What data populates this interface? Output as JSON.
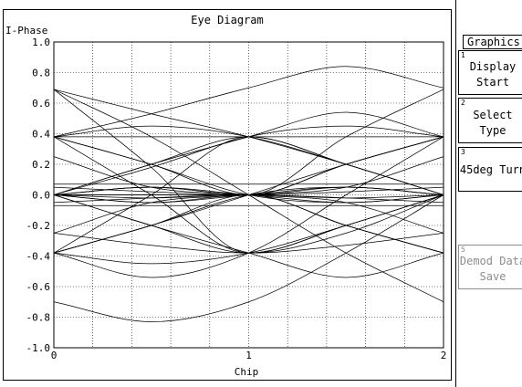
{
  "chart_data": {
    "type": "line",
    "title": "Eye Diagram",
    "ylabel": "I-Phase",
    "xlabel": "Chip",
    "xlim": [
      0,
      2
    ],
    "ylim": [
      -1.0,
      1.0
    ],
    "x_ticks": [
      0,
      1,
      2
    ],
    "x_tick_labels": [
      "0",
      "1",
      "2"
    ],
    "y_ticks": [
      1.0,
      0.8,
      0.6,
      0.4,
      0.2,
      0.0,
      -0.2,
      -0.4,
      -0.6,
      -0.8,
      -1.0
    ],
    "y_tick_labels": [
      "1.0",
      "0.8",
      "0.6",
      "0.4",
      "0.2",
      "0.0",
      "-0.2",
      "-0.4",
      "-0.6",
      "-0.8",
      "-1.0"
    ],
    "x_minor_divisions": 10,
    "grid": true,
    "symbol_levels": [
      0.69,
      0.38,
      0.0,
      -0.38,
      -0.69
    ],
    "traces": [
      {
        "x": [
          0,
          0.5,
          1.0,
          1.5,
          2.0
        ],
        "y": [
          -0.7,
          -0.83,
          -0.7,
          -0.38,
          0.0
        ]
      },
      {
        "x": [
          0,
          0.5,
          1.0,
          1.5,
          2.0
        ],
        "y": [
          0.38,
          0.53,
          0.7,
          0.84,
          0.7
        ]
      },
      {
        "x": [
          0,
          0.5,
          1.0,
          1.5,
          2.0
        ],
        "y": [
          -0.38,
          -0.54,
          -0.38,
          0.0,
          0.38
        ]
      },
      {
        "x": [
          0,
          0.5,
          1.0,
          1.5,
          2.0
        ],
        "y": [
          0.69,
          0.53,
          0.38,
          0.2,
          0.0
        ]
      },
      {
        "x": [
          0,
          0.5,
          1.0,
          1.5,
          2.0
        ],
        "y": [
          0.69,
          0.38,
          0.0,
          -0.38,
          -0.7
        ]
      },
      {
        "x": [
          0,
          0.5,
          1.0,
          1.5,
          2.0
        ],
        "y": [
          0.69,
          0.18,
          -0.38,
          -0.25,
          0.0
        ]
      },
      {
        "x": [
          0,
          0.5,
          1.0,
          1.5,
          2.0
        ],
        "y": [
          0.38,
          0.45,
          0.38,
          0.2,
          0.0
        ]
      },
      {
        "x": [
          0,
          0.5,
          1.0,
          1.5,
          2.0
        ],
        "y": [
          0.38,
          0.2,
          0.0,
          0.2,
          0.38
        ]
      },
      {
        "x": [
          0,
          0.5,
          1.0,
          1.5,
          2.0
        ],
        "y": [
          0.38,
          0.0,
          -0.38,
          -0.2,
          0.0
        ]
      },
      {
        "x": [
          0,
          0.5,
          1.0,
          1.5,
          2.0
        ],
        "y": [
          0.0,
          0.2,
          0.38,
          0.2,
          0.0
        ]
      },
      {
        "x": [
          0,
          0.5,
          1.0,
          1.5,
          2.0
        ],
        "y": [
          0.0,
          -0.2,
          -0.38,
          -0.2,
          0.0
        ]
      },
      {
        "x": [
          0,
          0.5,
          1.0,
          1.5,
          2.0
        ],
        "y": [
          0.0,
          0.05,
          0.0,
          -0.05,
          0.0
        ]
      },
      {
        "x": [
          0,
          0.5,
          1.0,
          1.5,
          2.0
        ],
        "y": [
          0.0,
          -0.05,
          0.0,
          0.05,
          0.0
        ]
      },
      {
        "x": [
          0,
          0.5,
          1.0,
          1.5,
          2.0
        ],
        "y": [
          0.05,
          0.02,
          0.0,
          0.02,
          0.05
        ]
      },
      {
        "x": [
          0,
          0.5,
          1.0,
          1.5,
          2.0
        ],
        "y": [
          -0.05,
          -0.02,
          0.0,
          -0.02,
          -0.05
        ]
      },
      {
        "x": [
          0,
          0.5,
          1.0,
          1.5,
          2.0
        ],
        "y": [
          0.0,
          0.2,
          0.38,
          0.54,
          0.38
        ]
      },
      {
        "x": [
          0,
          0.5,
          1.0,
          1.5,
          2.0
        ],
        "y": [
          0.0,
          -0.2,
          -0.38,
          -0.54,
          -0.38
        ]
      },
      {
        "x": [
          0,
          0.5,
          1.0,
          1.5,
          2.0
        ],
        "y": [
          0.0,
          0.18,
          0.38,
          0.45,
          0.38
        ]
      },
      {
        "x": [
          0,
          0.5,
          1.0,
          1.5,
          2.0
        ],
        "y": [
          -0.38,
          -0.2,
          0.0,
          0.2,
          0.38
        ]
      },
      {
        "x": [
          0,
          0.5,
          1.0,
          1.5,
          2.0
        ],
        "y": [
          -0.38,
          0.0,
          0.38,
          0.2,
          0.0
        ]
      },
      {
        "x": [
          0,
          0.5,
          1.0,
          1.5,
          2.0
        ],
        "y": [
          -0.38,
          -0.45,
          -0.38,
          -0.2,
          0.0
        ]
      },
      {
        "x": [
          0,
          0.5,
          1.0,
          1.5,
          2.0
        ],
        "y": [
          -0.38,
          -0.2,
          0.0,
          -0.2,
          -0.38
        ]
      },
      {
        "x": [
          0,
          0.5,
          1.0,
          1.5,
          2.0
        ],
        "y": [
          -0.25,
          -0.05,
          0.0,
          0.05,
          0.25
        ]
      },
      {
        "x": [
          0,
          0.5,
          1.0,
          1.5,
          2.0
        ],
        "y": [
          0.25,
          0.05,
          0.0,
          -0.05,
          -0.25
        ]
      },
      {
        "x": [
          0,
          0.5,
          1.0,
          1.5,
          2.0
        ],
        "y": [
          -0.25,
          -0.33,
          -0.38,
          -0.33,
          -0.25
        ]
      },
      {
        "x": [
          0,
          0.5,
          1.0,
          1.5,
          2.0
        ],
        "y": [
          0.0,
          0.05,
          0.0,
          0.2,
          0.38
        ]
      },
      {
        "x": [
          0,
          0.5,
          1.0,
          1.5,
          2.0
        ],
        "y": [
          0.0,
          -0.05,
          0.0,
          -0.2,
          -0.38
        ]
      },
      {
        "x": [
          0,
          0.5,
          1.0,
          1.5,
          2.0
        ],
        "y": [
          0.38,
          0.2,
          0.0,
          -0.05,
          0.0
        ]
      },
      {
        "x": [
          0,
          0.5,
          1.0,
          1.5,
          2.0
        ],
        "y": [
          -0.38,
          -0.2,
          0.0,
          0.05,
          0.0
        ]
      },
      {
        "x": [
          0,
          0.5,
          1.0,
          1.5,
          2.0
        ],
        "y": [
          0.07,
          0.07,
          0.07,
          0.07,
          0.07
        ]
      },
      {
        "x": [
          0,
          0.5,
          1.0,
          1.5,
          2.0
        ],
        "y": [
          -0.07,
          -0.07,
          -0.07,
          -0.07,
          -0.07
        ]
      },
      {
        "x": [
          0,
          0.5,
          1.0,
          1.5,
          2.0
        ],
        "y": [
          0.38,
          0.38,
          0.38,
          0.38,
          0.38
        ]
      },
      {
        "x": [
          0,
          0.5,
          1.0,
          1.5,
          2.0
        ],
        "y": [
          0.0,
          0.0,
          0.0,
          0.38,
          0.69
        ]
      },
      {
        "x": [
          0,
          0.5,
          1.0,
          1.5,
          2.0
        ],
        "y": [
          0.0,
          0.0,
          0.0,
          -0.2,
          -0.38
        ]
      },
      {
        "x": [
          0,
          0.5,
          1.0,
          1.5,
          2.0
        ],
        "y": [
          0.0,
          0.05,
          0.0,
          0.05,
          0.0
        ]
      },
      {
        "x": [
          0,
          0.5,
          1.0,
          1.5,
          2.0
        ],
        "y": [
          0.0,
          -0.02,
          0.0,
          -0.02,
          0.0
        ]
      }
    ]
  },
  "softkeys": {
    "menu_title": "Graphics",
    "items": [
      {
        "number": "1",
        "lines": [
          "Display",
          "Start"
        ],
        "enabled": true
      },
      {
        "number": "2",
        "lines": [
          "Select",
          "Type"
        ],
        "enabled": true
      },
      {
        "number": "3",
        "lines": [
          "45deg Turn"
        ],
        "enabled": true
      },
      {
        "number": "5",
        "lines": [
          "Demod Data",
          "Save"
        ],
        "enabled": false
      }
    ]
  }
}
